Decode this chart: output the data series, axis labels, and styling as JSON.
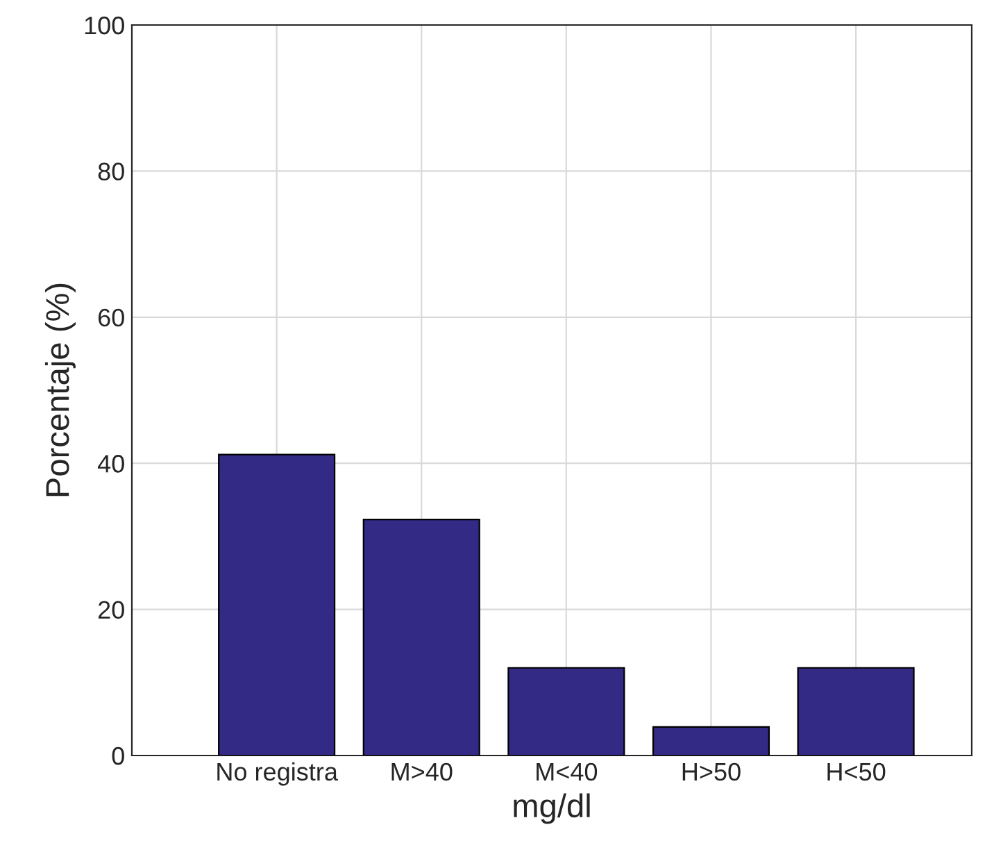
{
  "chart_data": {
    "type": "bar",
    "xlabel": "mg/dl",
    "ylabel": "Porcentaje (%)",
    "categories": [
      "No registra",
      "M>40",
      "M<40",
      "H>50",
      "H<50"
    ],
    "values": [
      41.2,
      32.3,
      12,
      3.9,
      12
    ],
    "color": "#332a85",
    "ylim": [
      0,
      100
    ],
    "yticks": [
      0,
      20,
      40,
      60,
      80,
      100
    ],
    "grid": true
  }
}
